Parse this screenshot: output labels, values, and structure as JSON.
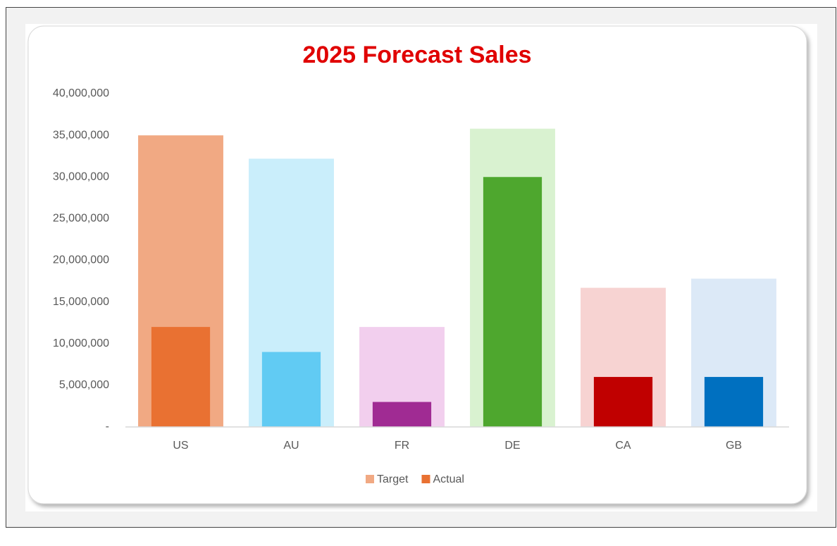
{
  "chart_data": {
    "type": "bar",
    "title": "2025 Forecast Sales",
    "categories": [
      "US",
      "AU",
      "FR",
      "DE",
      "CA",
      "GB"
    ],
    "series": [
      {
        "name": "Target",
        "color": "#f1a983",
        "colors": [
          "#f1a983",
          "#caeefb",
          "#f2cfee",
          "#d9f2d0",
          "#f7d3d2",
          "#dce9f7"
        ],
        "values": [
          35000000,
          32200000,
          12000000,
          35800000,
          16700000,
          17800000
        ]
      },
      {
        "name": "Actual",
        "color": "#e97132",
        "colors": [
          "#e97132",
          "#61cbf3",
          "#a02b93",
          "#4ea72e",
          "#c00000",
          "#0070c0"
        ],
        "values": [
          12000000,
          9000000,
          3000000,
          30000000,
          6000000,
          6000000
        ]
      }
    ],
    "ylim": [
      0,
      40000000
    ],
    "yticks": [
      {
        "value": 0,
        "label": "-"
      },
      {
        "value": 5000000,
        "label": "5,000,000"
      },
      {
        "value": 10000000,
        "label": "10,000,000"
      },
      {
        "value": 15000000,
        "label": "15,000,000"
      },
      {
        "value": 20000000,
        "label": "20,000,000"
      },
      {
        "value": 25000000,
        "label": "25,000,000"
      },
      {
        "value": 30000000,
        "label": "30,000,000"
      },
      {
        "value": 35000000,
        "label": "35,000,000"
      },
      {
        "value": 40000000,
        "label": "40,000,000"
      }
    ],
    "legend": "bottom",
    "grid": false
  }
}
